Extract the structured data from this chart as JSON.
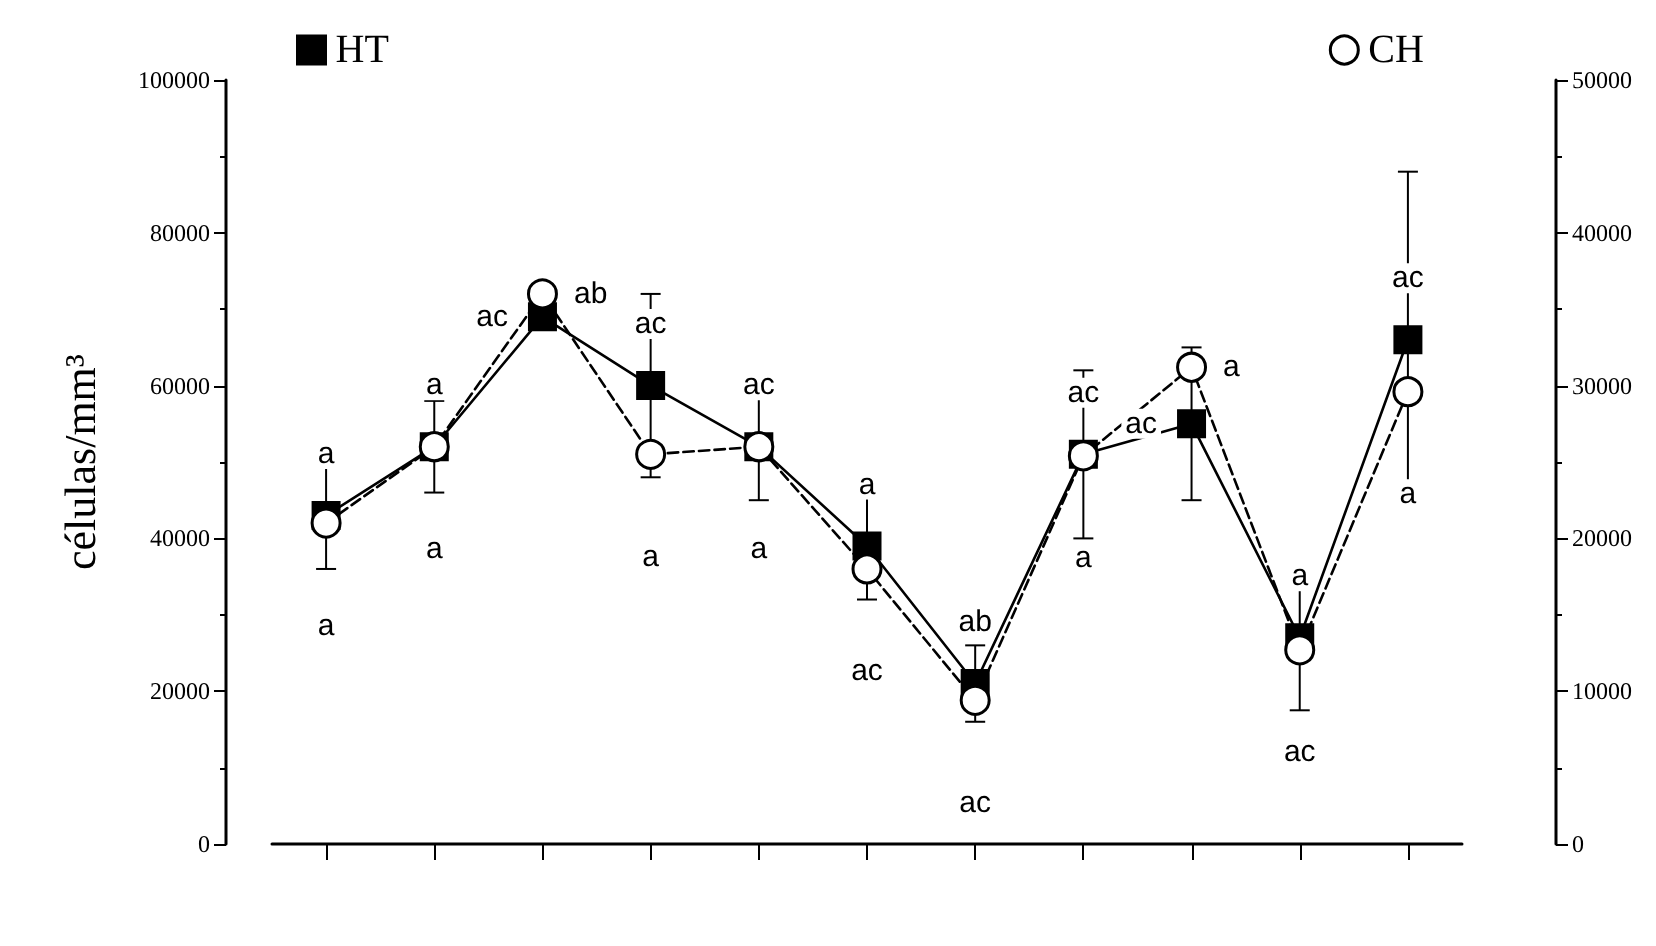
{
  "chart_data": {
    "type": "line",
    "ylabel": "células/mm³",
    "categories": [
      null,
      null,
      null,
      null,
      null,
      null,
      null,
      null,
      null,
      null,
      null
    ],
    "series": [
      {
        "name": "HT",
        "color": "#000000",
        "marker": "square",
        "line_style": "solid",
        "values": [
          43000,
          52000,
          69000,
          60000,
          52000,
          39000,
          21000,
          51000,
          55000,
          27000,
          66000
        ],
        "errors": [
          7000,
          6000,
          null,
          12000,
          7000,
          7000,
          5000,
          11000,
          10000,
          9500,
          22000
        ],
        "value_labels": [
          "a",
          "a",
          "ac",
          "ac",
          "ac",
          "a",
          "ab",
          "ac",
          "ac",
          "a",
          "ac"
        ]
      },
      {
        "name": "CH",
        "color": "#000000",
        "marker": "circle",
        "line_style": "dashed",
        "axis": "y2",
        "values": [
          21000,
          26000,
          36000,
          25500,
          26000,
          18000,
          9400,
          25400,
          31200,
          12700,
          29600
        ],
        "value_labels": [
          "a",
          "a",
          "ab",
          "a",
          "a",
          "ac",
          "ac",
          "a",
          "a",
          "ac",
          "a"
        ]
      }
    ],
    "ylim": [
      0,
      100000
    ],
    "yticks": [
      0,
      20000,
      40000,
      60000,
      80000,
      100000
    ],
    "y2lim": [
      0,
      50000
    ],
    "y2ticks": [
      0,
      10000,
      20000,
      30000,
      40000,
      50000
    ],
    "tick_labels": "y",
    "grid": false,
    "legend": "top"
  }
}
